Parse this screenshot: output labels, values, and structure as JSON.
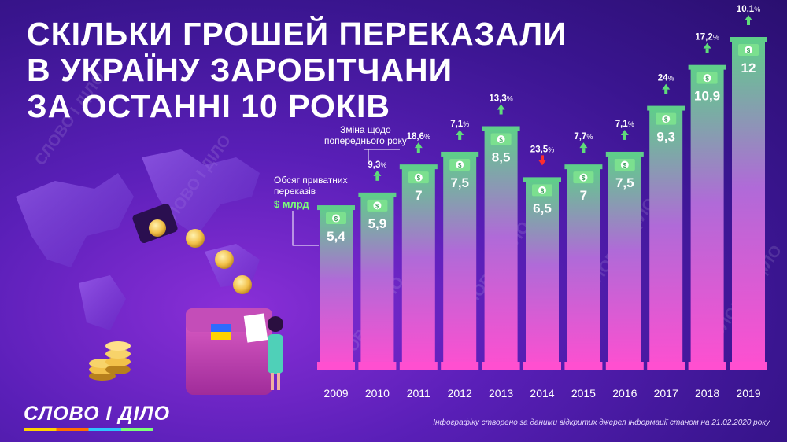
{
  "title": {
    "line1": "Скільки грошей переказали",
    "line2": "в Україну заробітчани",
    "line3": "за останні 10 років"
  },
  "legend": {
    "volume_label_line1": "Обсяг приватних",
    "volume_label_line2": "переказів",
    "volume_unit": "$ млрд",
    "change_label_line1": "Зміна щодо",
    "change_label_line2": "попереднього року"
  },
  "logo": "СЛОВО І ДІЛО",
  "watermark": "СЛОВО І ДІЛО",
  "source": "Інфографіку створено за даними відкритих джерел інформації станом на 21.02.2020 року",
  "colors": {
    "bar_top": "#5fce8a",
    "bar_bottom": "#ff4fd0",
    "up_arrow": "#5fdc7a",
    "down_arrow": "#ff2d2d",
    "unit_green": "#7bff7a"
  },
  "chart_data": {
    "type": "bar",
    "categories": [
      "2009",
      "2010",
      "2011",
      "2012",
      "2013",
      "2014",
      "2015",
      "2016",
      "2017",
      "2018",
      "2019"
    ],
    "values": [
      5.4,
      5.9,
      7,
      7.5,
      8.5,
      6.5,
      7,
      7.5,
      9.3,
      10.9,
      12
    ],
    "value_labels": [
      "5,4",
      "5,9",
      "7",
      "7,5",
      "8,5",
      "6,5",
      "7",
      "7,5",
      "9,3",
      "10,9",
      "12"
    ],
    "changes": [
      "",
      "9,3",
      "18,6",
      "7,1",
      "13,3",
      "23,5",
      "7,7",
      "7,1",
      "24",
      "17,2",
      "10,1"
    ],
    "change_direction": [
      "",
      "up",
      "up",
      "up",
      "up",
      "down",
      "up",
      "up",
      "up",
      "up",
      "up"
    ],
    "change_unit": "%",
    "ylim": [
      0,
      12
    ]
  }
}
